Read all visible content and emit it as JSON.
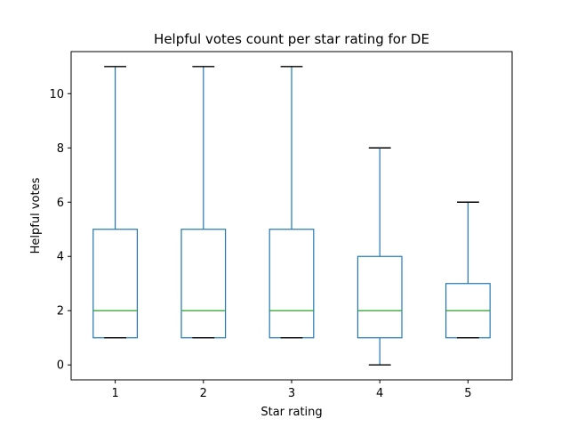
{
  "chart_data": {
    "type": "box",
    "title": "Helpful votes count per star rating for DE",
    "xlabel": "Star rating",
    "ylabel": "Helpful votes",
    "categories": [
      "1",
      "2",
      "3",
      "4",
      "5"
    ],
    "ylim": [
      -0.55,
      11.55
    ],
    "yticks": [
      0,
      2,
      4,
      6,
      8,
      10
    ],
    "boxes": [
      {
        "category": "1",
        "whisker_low": 1,
        "q1": 1,
        "median": 2,
        "q3": 5,
        "whisker_high": 11
      },
      {
        "category": "2",
        "whisker_low": 1,
        "q1": 1,
        "median": 2,
        "q3": 5,
        "whisker_high": 11
      },
      {
        "category": "3",
        "whisker_low": 1,
        "q1": 1,
        "median": 2,
        "q3": 5,
        "whisker_high": 11
      },
      {
        "category": "4",
        "whisker_low": 0,
        "q1": 1,
        "median": 2,
        "q3": 4,
        "whisker_high": 8
      },
      {
        "category": "5",
        "whisker_low": 1,
        "q1": 1,
        "median": 2,
        "q3": 3,
        "whisker_high": 6
      }
    ],
    "grid": false,
    "colors": {
      "box": "#1f77b4",
      "median": "#2ca02c",
      "cap": "#000000"
    }
  }
}
